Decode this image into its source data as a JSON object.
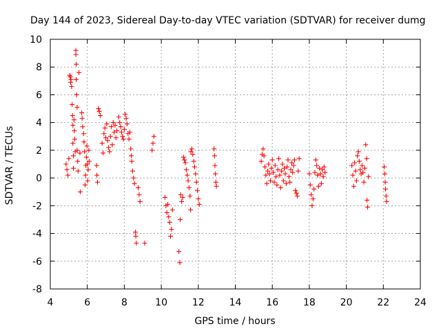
{
  "chart_data": {
    "type": "scatter",
    "title": "Day 144 of 2023, Sidereal Day-to-day VTEC variation (SDTVAR) for receiver dumg",
    "xlabel": "GPS time / hours",
    "ylabel": "SDTVAR / TECUs",
    "xlim": [
      4,
      24
    ],
    "ylim": [
      -8,
      10
    ],
    "xticks": [
      4,
      6,
      8,
      10,
      12,
      14,
      16,
      18,
      20,
      22,
      24
    ],
    "yticks": [
      -8,
      -6,
      -4,
      -2,
      0,
      2,
      4,
      6,
      8,
      10
    ],
    "grid": true,
    "marker": "+",
    "color": "#ff0000",
    "series": [
      {
        "name": "SDTVAR",
        "points": [
          [
            4.85,
            1.0
          ],
          [
            4.9,
            0.6
          ],
          [
            4.95,
            0.2
          ],
          [
            5.0,
            1.4
          ],
          [
            5.05,
            7.4
          ],
          [
            5.08,
            7.3
          ],
          [
            5.1,
            6.9
          ],
          [
            5.12,
            7.1
          ],
          [
            5.15,
            6.6
          ],
          [
            5.18,
            5.3
          ],
          [
            5.2,
            4.5
          ],
          [
            5.22,
            3.8
          ],
          [
            5.22,
            2.5
          ],
          [
            5.25,
            1.6
          ],
          [
            5.25,
            0.7
          ],
          [
            5.28,
            4.2
          ],
          [
            5.3,
            3.4
          ],
          [
            5.32,
            2.8
          ],
          [
            5.35,
            1.9
          ],
          [
            5.38,
            9.2
          ],
          [
            5.38,
            8.9
          ],
          [
            5.4,
            8.2
          ],
          [
            5.4,
            7.1
          ],
          [
            5.42,
            6.0
          ],
          [
            5.45,
            5.1
          ],
          [
            5.45,
            2.0
          ],
          [
            5.48,
            1.2
          ],
          [
            5.5,
            0.5
          ],
          [
            5.55,
            7.6
          ],
          [
            5.6,
            1.8
          ],
          [
            5.62,
            -1.0
          ],
          [
            5.7,
            4.7
          ],
          [
            5.72,
            4.3
          ],
          [
            5.75,
            3.7
          ],
          [
            5.8,
            3.2
          ],
          [
            5.82,
            2.6
          ],
          [
            5.85,
            1.9
          ],
          [
            5.88,
            -0.5
          ],
          [
            5.9,
            0.2
          ],
          [
            5.92,
            0.9
          ],
          [
            5.95,
            1.5
          ],
          [
            5.98,
            2.3
          ],
          [
            6.0,
            1.0
          ],
          [
            6.02,
            -0.2
          ],
          [
            6.05,
            0.6
          ],
          [
            6.08,
            2.0
          ],
          [
            6.1,
            1.2
          ],
          [
            6.5,
            0.9
          ],
          [
            6.52,
            0.2
          ],
          [
            6.55,
            -0.3
          ],
          [
            6.6,
            5.0
          ],
          [
            6.65,
            4.8
          ],
          [
            6.7,
            4.5
          ],
          [
            6.8,
            2.5
          ],
          [
            6.85,
            1.8
          ],
          [
            6.9,
            3.2
          ],
          [
            6.95,
            3.6
          ],
          [
            7.0,
            2.9
          ],
          [
            7.05,
            3.9
          ],
          [
            7.1,
            2.7
          ],
          [
            7.15,
            2.2
          ],
          [
            7.2,
            1.9
          ],
          [
            7.25,
            3.0
          ],
          [
            7.3,
            3.7
          ],
          [
            7.35,
            2.4
          ],
          [
            7.4,
            4.0
          ],
          [
            7.45,
            3.3
          ],
          [
            7.5,
            3.8
          ],
          [
            7.55,
            2.9
          ],
          [
            7.6,
            3.4
          ],
          [
            7.7,
            4.4
          ],
          [
            7.75,
            4.0
          ],
          [
            7.8,
            3.7
          ],
          [
            7.85,
            3.3
          ],
          [
            7.9,
            3.0
          ],
          [
            7.95,
            2.8
          ],
          [
            8.0,
            3.5
          ],
          [
            8.05,
            4.6
          ],
          [
            8.1,
            4.3
          ],
          [
            8.15,
            3.9
          ],
          [
            8.2,
            3.2
          ],
          [
            8.25,
            2.8
          ],
          [
            8.3,
            3.3
          ],
          [
            8.35,
            2.1
          ],
          [
            8.38,
            1.6
          ],
          [
            8.4,
            1.2
          ],
          [
            8.45,
            0.5
          ],
          [
            8.5,
            0.0
          ],
          [
            8.55,
            -0.4
          ],
          [
            8.6,
            -3.9
          ],
          [
            8.62,
            -4.2
          ],
          [
            8.65,
            -4.7
          ],
          [
            8.75,
            -0.7
          ],
          [
            8.8,
            -1.2
          ],
          [
            8.85,
            -1.7
          ],
          [
            9.1,
            -4.7
          ],
          [
            9.5,
            2.0
          ],
          [
            9.55,
            2.5
          ],
          [
            9.6,
            3.0
          ],
          [
            10.2,
            -1.4
          ],
          [
            10.25,
            -2.0
          ],
          [
            10.3,
            -2.5
          ],
          [
            10.35,
            -1.9
          ],
          [
            10.4,
            -2.8
          ],
          [
            10.45,
            -3.2
          ],
          [
            10.5,
            -4.2
          ],
          [
            10.55,
            -3.7
          ],
          [
            10.6,
            -2.3
          ],
          [
            10.95,
            -5.3
          ],
          [
            11.0,
            -6.1
          ],
          [
            11.02,
            -3.0
          ],
          [
            11.05,
            -1.2
          ],
          [
            11.1,
            -1.7
          ],
          [
            11.15,
            -1.4
          ],
          [
            11.2,
            1.5
          ],
          [
            11.25,
            1.3
          ],
          [
            11.3,
            1.1
          ],
          [
            11.35,
            0.6
          ],
          [
            11.4,
            0.2
          ],
          [
            11.45,
            -0.2
          ],
          [
            11.5,
            -0.7
          ],
          [
            11.55,
            -1.3
          ],
          [
            11.58,
            -2.3
          ],
          [
            11.6,
            1.9
          ],
          [
            11.65,
            2.1
          ],
          [
            11.7,
            1.7
          ],
          [
            11.75,
            1.2
          ],
          [
            11.8,
            0.8
          ],
          [
            11.85,
            0.3
          ],
          [
            11.9,
            -0.3
          ],
          [
            11.95,
            -0.9
          ],
          [
            12.0,
            -1.5
          ],
          [
            12.05,
            -1.9
          ],
          [
            12.85,
            2.1
          ],
          [
            12.88,
            1.6
          ],
          [
            12.9,
            0.9
          ],
          [
            12.92,
            0.3
          ],
          [
            12.95,
            -0.3
          ],
          [
            12.98,
            -0.6
          ],
          [
            15.4,
            1.2
          ],
          [
            15.45,
            1.7
          ],
          [
            15.5,
            2.1
          ],
          [
            15.55,
            1.6
          ],
          [
            15.6,
            0.8
          ],
          [
            15.65,
            0.2
          ],
          [
            15.7,
            -0.4
          ],
          [
            15.75,
            0.5
          ],
          [
            15.8,
            1.0
          ],
          [
            15.85,
            0.3
          ],
          [
            15.9,
            -0.2
          ],
          [
            15.95,
            0.7
          ],
          [
            16.0,
            1.3
          ],
          [
            16.05,
            0.4
          ],
          [
            16.1,
            -0.3
          ],
          [
            16.15,
            0.9
          ],
          [
            16.2,
            0.1
          ],
          [
            16.25,
            -0.5
          ],
          [
            16.3,
            0.6
          ],
          [
            16.35,
            1.4
          ],
          [
            16.4,
            0.2
          ],
          [
            16.45,
            -0.7
          ],
          [
            16.5,
            0.5
          ],
          [
            16.55,
            1.0
          ],
          [
            16.6,
            -0.2
          ],
          [
            16.65,
            0.7
          ],
          [
            16.7,
            0.3
          ],
          [
            16.75,
            -0.4
          ],
          [
            16.8,
            0.8
          ],
          [
            16.85,
            1.3
          ],
          [
            16.9,
            0.1
          ],
          [
            16.95,
            -0.3
          ],
          [
            17.0,
            0.6
          ],
          [
            17.05,
            1.1
          ],
          [
            17.1,
            0.4
          ],
          [
            17.15,
            0.9
          ],
          [
            17.2,
            1.3
          ],
          [
            17.25,
            -0.9
          ],
          [
            17.3,
            -1.1
          ],
          [
            17.35,
            -1.3
          ],
          [
            17.4,
            0.5
          ],
          [
            17.45,
            1.4
          ],
          [
            18.0,
            0.3
          ],
          [
            18.05,
            -0.5
          ],
          [
            18.1,
            -1.2
          ],
          [
            18.15,
            -2.0
          ],
          [
            18.2,
            -1.5
          ],
          [
            18.25,
            -0.8
          ],
          [
            18.3,
            0.4
          ],
          [
            18.35,
            1.3
          ],
          [
            18.4,
            0.9
          ],
          [
            18.45,
            0.2
          ],
          [
            18.5,
            -0.6
          ],
          [
            18.55,
            0.7
          ],
          [
            18.6,
            0.3
          ],
          [
            18.65,
            -0.4
          ],
          [
            18.7,
            0.6
          ],
          [
            18.75,
            0.1
          ],
          [
            18.8,
            0.8
          ],
          [
            18.85,
            0.4
          ],
          [
            20.3,
            0.9
          ],
          [
            20.35,
            0.2
          ],
          [
            20.4,
            -0.6
          ],
          [
            20.45,
            1.1
          ],
          [
            20.5,
            0.5
          ],
          [
            20.55,
            -0.2
          ],
          [
            20.6,
            1.6
          ],
          [
            20.65,
            1.9
          ],
          [
            20.7,
            1.2
          ],
          [
            20.75,
            0.6
          ],
          [
            20.8,
            0.3
          ],
          [
            20.85,
            0.9
          ],
          [
            20.9,
            0.4
          ],
          [
            20.95,
            -0.3
          ],
          [
            21.0,
            0.7
          ],
          [
            21.05,
            2.4
          ],
          [
            21.1,
            1.4
          ],
          [
            21.12,
            -1.6
          ],
          [
            21.15,
            -2.1
          ],
          [
            21.2,
            0.1
          ],
          [
            22.05,
            0.8
          ],
          [
            22.08,
            0.3
          ],
          [
            22.1,
            -0.3
          ],
          [
            22.12,
            -0.8
          ],
          [
            22.15,
            -1.3
          ],
          [
            22.18,
            -1.7
          ]
        ]
      }
    ]
  }
}
